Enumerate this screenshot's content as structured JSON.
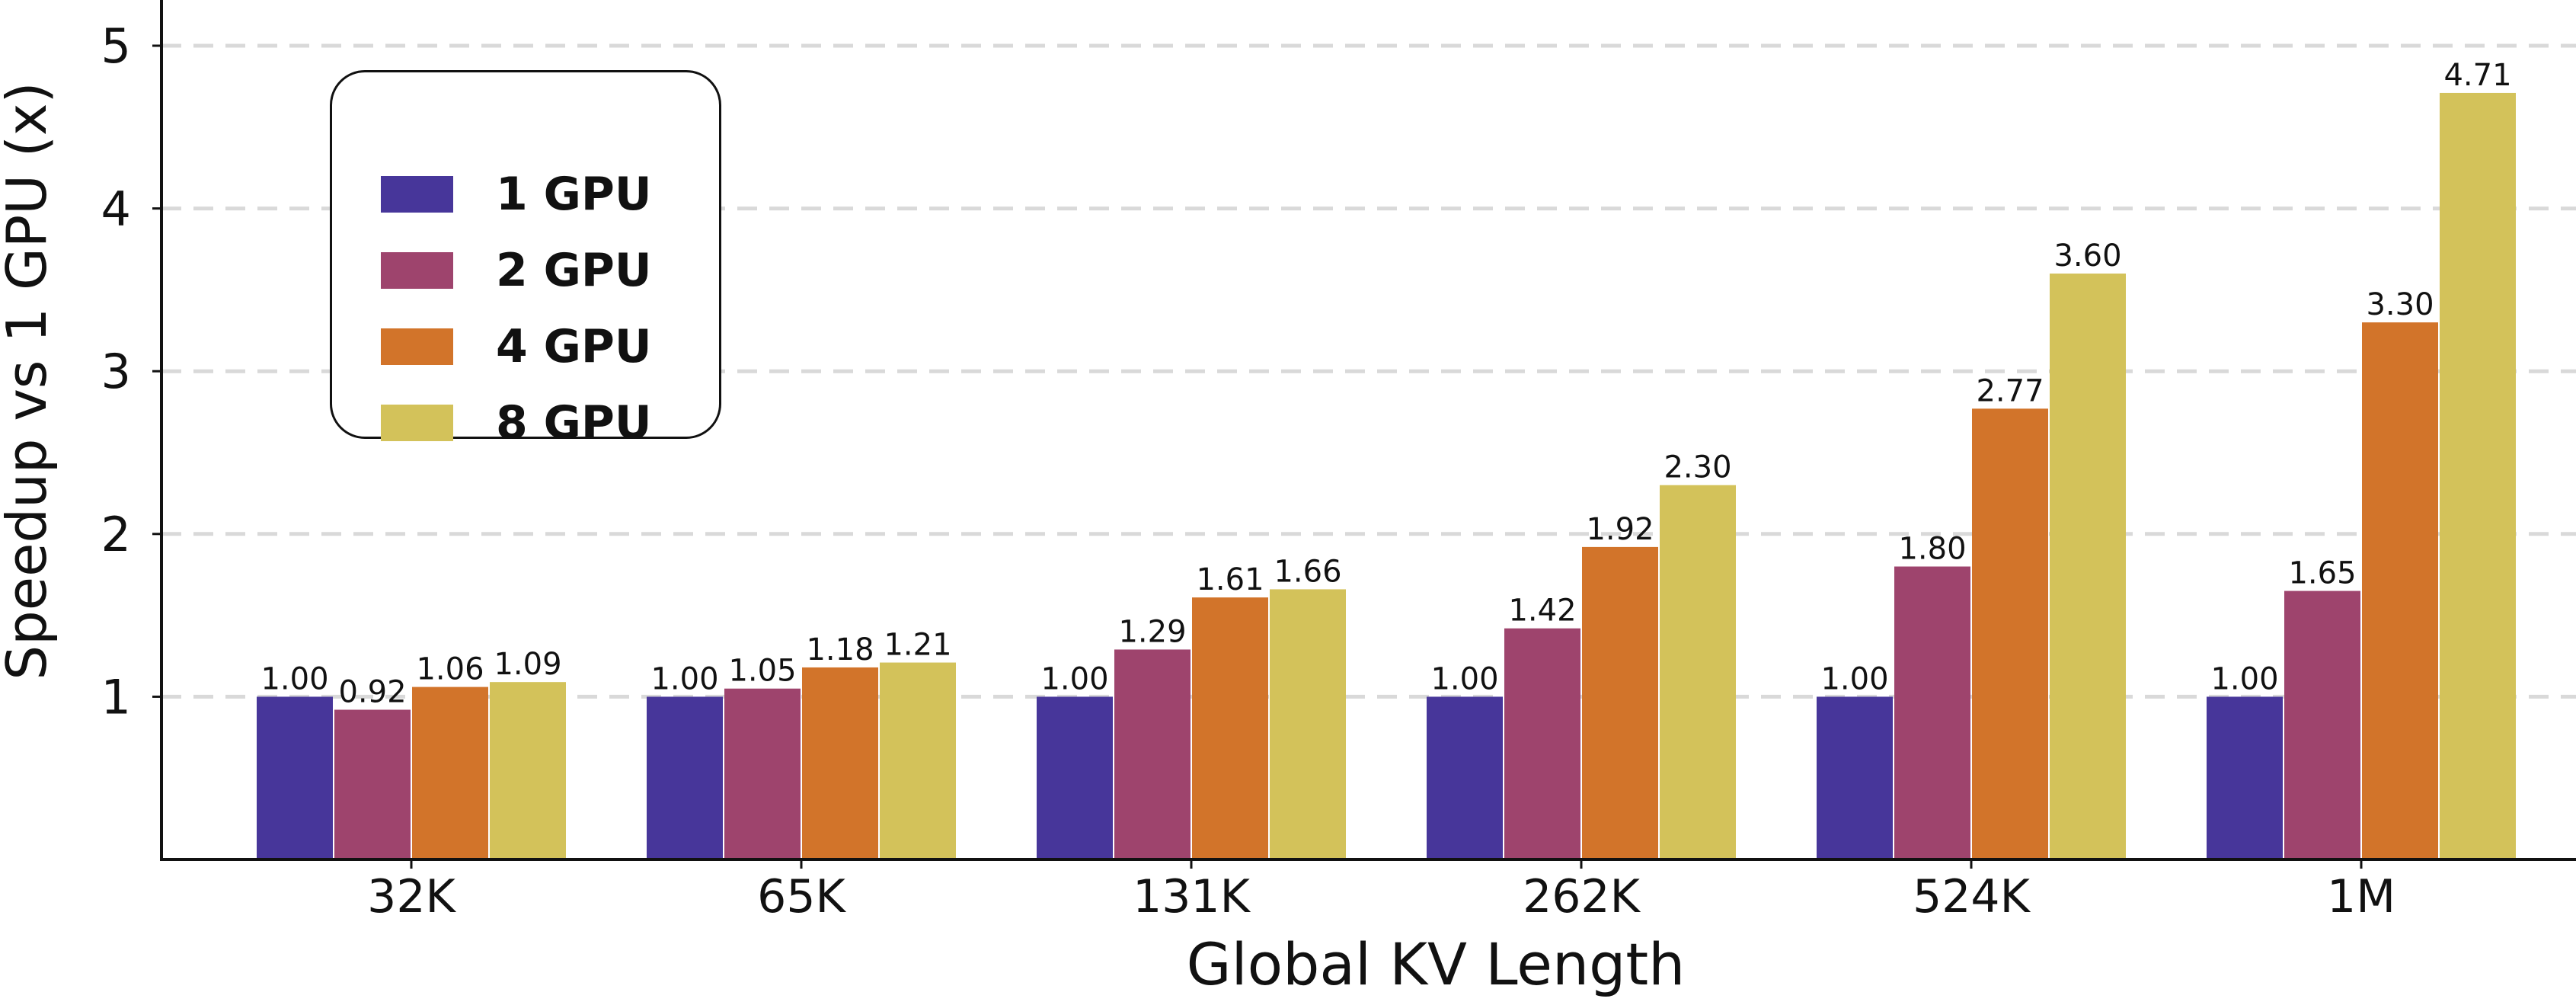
{
  "chart_data": {
    "type": "bar",
    "title": "",
    "xlabel": "Global KV Length",
    "ylabel": "Speedup vs 1 GPU (x)",
    "categories": [
      "32K",
      "65K",
      "131K",
      "262K",
      "524K",
      "1M"
    ],
    "yticks": [
      "1",
      "2",
      "3",
      "4",
      "5"
    ],
    "ylim": [
      0,
      5.3
    ],
    "grid": "horizontal dashed",
    "legend_placement": "top-left",
    "series": [
      {
        "name": "1 GPU",
        "color": "#47369a",
        "values": [
          1.0,
          1.0,
          1.0,
          1.0,
          1.0,
          1.0
        ],
        "labels": [
          "1.00",
          "1.00",
          "1.00",
          "1.00",
          "1.00",
          "1.00"
        ]
      },
      {
        "name": "2 GPU",
        "color": "#9e446d",
        "values": [
          0.92,
          1.05,
          1.29,
          1.42,
          1.8,
          1.65
        ],
        "labels": [
          "0.92",
          "1.05",
          "1.29",
          "1.42",
          "1.80",
          "1.65"
        ]
      },
      {
        "name": "4 GPU",
        "color": "#d2742a",
        "values": [
          1.06,
          1.18,
          1.61,
          1.92,
          2.77,
          3.3
        ],
        "labels": [
          "1.06",
          "1.18",
          "1.61",
          "1.92",
          "2.77",
          "3.30"
        ]
      },
      {
        "name": "8 GPU",
        "color": "#d3c25a",
        "values": [
          1.09,
          1.21,
          1.66,
          2.3,
          3.6,
          4.71
        ],
        "labels": [
          "1.09",
          "1.21",
          "1.66",
          "2.30",
          "3.60",
          "4.71"
        ]
      }
    ]
  }
}
